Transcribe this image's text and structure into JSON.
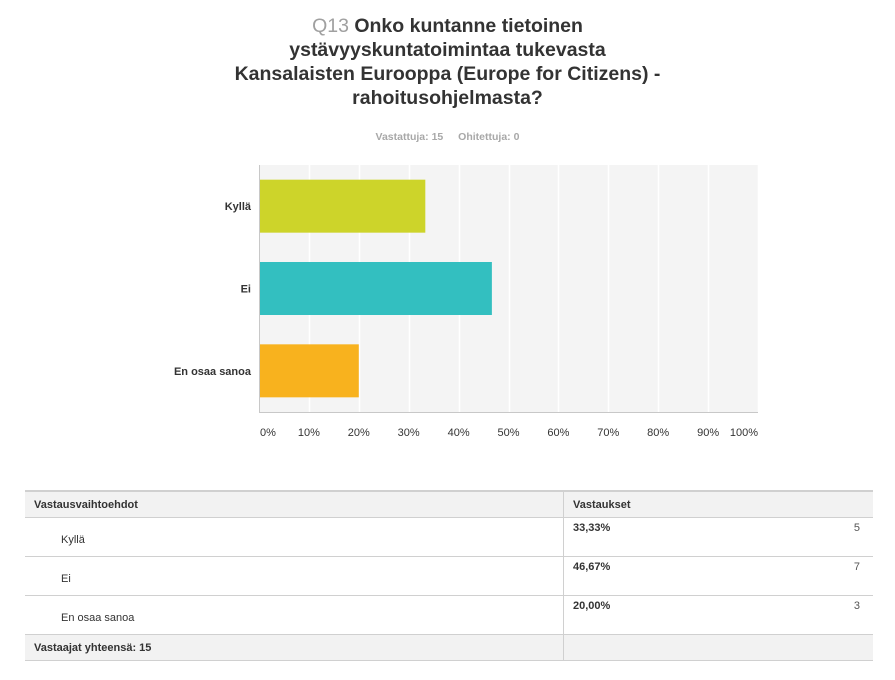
{
  "question": {
    "number": "Q13",
    "text": "Onko kuntanne tietoinen ystävyyskuntatoimintaa tukevasta Kansalaisten Eurooppa (Europe for Citizens) -rahoitusohjelmasta?"
  },
  "meta": {
    "answered": "Vastattuja: 15",
    "skipped": "Ohitettuja: 0"
  },
  "chart_data": {
    "type": "bar",
    "orientation": "horizontal",
    "categories": [
      "Kyllä",
      "Ei",
      "En osaa sanoa"
    ],
    "values": [
      33.33,
      46.67,
      20.0
    ],
    "colors": [
      "#cdd42a",
      "#33bfc0",
      "#f8b21e"
    ],
    "xlim": [
      0,
      100
    ],
    "xticks": [
      "0%",
      "10%",
      "20%",
      "30%",
      "40%",
      "50%",
      "60%",
      "70%",
      "80%",
      "90%",
      "100%"
    ],
    "grid": true
  },
  "table": {
    "headers": [
      "Vastausvaihtoehdot",
      "Vastaukset"
    ],
    "rows": [
      {
        "label": "Kyllä",
        "percent": "33,33%",
        "count": "5"
      },
      {
        "label": "Ei",
        "percent": "46,67%",
        "count": "7"
      },
      {
        "label": "En osaa sanoa",
        "percent": "20,00%",
        "count": "3"
      }
    ],
    "total": "Vastaajat yhteensä: 15"
  }
}
